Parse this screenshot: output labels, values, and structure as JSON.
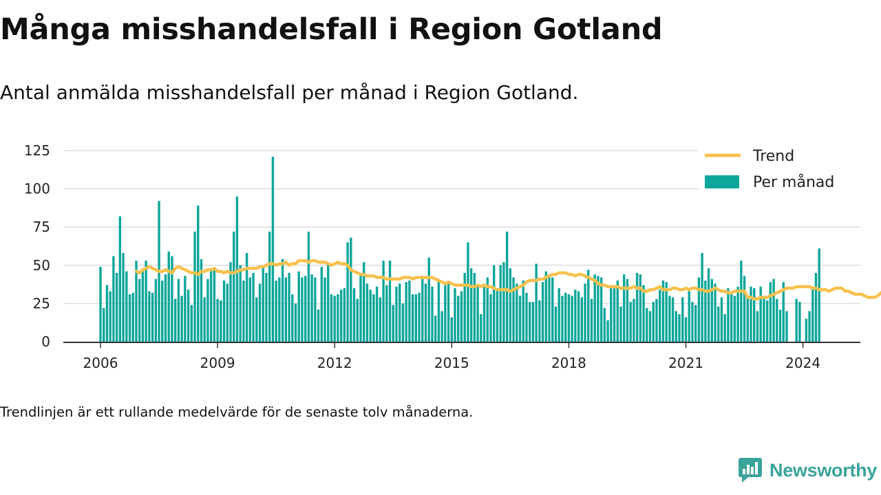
{
  "title": "Många misshandelsfall i Region Gotland",
  "subtitle": "Antal anmälda misshandelsfall per månad i Region Gotland.",
  "note": "Trendlinjen är ett rullande medelvärde för de senaste tolv månaderna.",
  "brand": {
    "name": "Newsworthy",
    "icon": "bar-chart-logo-icon"
  },
  "colors": {
    "bars": "#0ea69a",
    "trend": "#f8c14e",
    "brand": "#3aa39a",
    "grid": "#dcdcdc",
    "axis": "#333333"
  },
  "chart_data": {
    "type": "bar",
    "x_start": "2006-01",
    "x_end": "2024-07",
    "xticks": [
      "2006",
      "2009",
      "2012",
      "2015",
      "2018",
      "2021",
      "2024"
    ],
    "yticks": [
      "0",
      "25",
      "50",
      "75",
      "100",
      "125"
    ],
    "ylim": [
      0,
      130
    ],
    "grid": true,
    "legend_position": "top-right",
    "series": [
      {
        "name": "Per månad",
        "type": "bar",
        "values": [
          49,
          22,
          37,
          33,
          56,
          45,
          82,
          58,
          46,
          31,
          32,
          53,
          41,
          46,
          53,
          33,
          32,
          41,
          92,
          40,
          44,
          59,
          56,
          28,
          41,
          30,
          43,
          34,
          24,
          72,
          89,
          54,
          29,
          41,
          47,
          48,
          28,
          27,
          40,
          38,
          52,
          72,
          95,
          50,
          40,
          58,
          42,
          45,
          29,
          38,
          50,
          45,
          72,
          121,
          40,
          42,
          54,
          42,
          45,
          31,
          25,
          46,
          42,
          43,
          72,
          44,
          42,
          21,
          49,
          42,
          51,
          31,
          30,
          31,
          34,
          35,
          65,
          68,
          35,
          28,
          45,
          52,
          38,
          34,
          31,
          36,
          29,
          53,
          37,
          53,
          24,
          36,
          38,
          25,
          39,
          40,
          31,
          31,
          32,
          43,
          38,
          55,
          36,
          17,
          41,
          20,
          37,
          38,
          16,
          35,
          30,
          33,
          45,
          65,
          48,
          45,
          37,
          18,
          38,
          42,
          31,
          50,
          34,
          50,
          52,
          72,
          48,
          42,
          38,
          30,
          40,
          32,
          26,
          26,
          51,
          27,
          39,
          46,
          43,
          42,
          23,
          35,
          30,
          32,
          31,
          30,
          34,
          33,
          29,
          38,
          47,
          28,
          44,
          43,
          42,
          22,
          14,
          35,
          35,
          40,
          23,
          44,
          41,
          26,
          28,
          45,
          44,
          37,
          22,
          20,
          26,
          28,
          34,
          40,
          39,
          30,
          29,
          20,
          18,
          29,
          16,
          33,
          26,
          24,
          42,
          58,
          40,
          48,
          41,
          38,
          23,
          29,
          18,
          35,
          33,
          30,
          36,
          53,
          43,
          30,
          36,
          35,
          20,
          36,
          30,
          27,
          39,
          41,
          28,
          21,
          39,
          20,
          0,
          0,
          28,
          26,
          0,
          15,
          20,
          36,
          45,
          61
        ]
      },
      {
        "name": "Trend",
        "type": "line",
        "start": "2006-12",
        "values": [
          46,
          45,
          47,
          48,
          49,
          48,
          47,
          46,
          46,
          47,
          46,
          45,
          48,
          49,
          48,
          47,
          46,
          45,
          45,
          44,
          46,
          46,
          47,
          47,
          48,
          46,
          46,
          45,
          46,
          45,
          45,
          46,
          47,
          47,
          48,
          48,
          48,
          48,
          49,
          49,
          50,
          51,
          51,
          50,
          51,
          51,
          52,
          50,
          51,
          51,
          53,
          53,
          53,
          52,
          53,
          53,
          52,
          52,
          52,
          51,
          50,
          51,
          52,
          51,
          51,
          50,
          47,
          46,
          45,
          44,
          44,
          43,
          43,
          43,
          42,
          42,
          42,
          41,
          41,
          41,
          41,
          41,
          42,
          42,
          42,
          41,
          42,
          42,
          42,
          42,
          42,
          42,
          41,
          40,
          39,
          38,
          39,
          38,
          37,
          37,
          37,
          37,
          37,
          36,
          36,
          37,
          36,
          37,
          36,
          36,
          35,
          34,
          34,
          34,
          34,
          33,
          34,
          35,
          36,
          37,
          39,
          40,
          40,
          40,
          41,
          41,
          42,
          43,
          44,
          44,
          45,
          45,
          45,
          44,
          44,
          43,
          44,
          44,
          43,
          42,
          41,
          40,
          38,
          37,
          37,
          36,
          36,
          36,
          36,
          35,
          35,
          35,
          35,
          36,
          35,
          35,
          33,
          33,
          34,
          34,
          35,
          36,
          34,
          34,
          34,
          35,
          35,
          34,
          34,
          35,
          34,
          35,
          35,
          34,
          34,
          33,
          33,
          34,
          35,
          34,
          33,
          33,
          32,
          32,
          33,
          33,
          33,
          33,
          29,
          29,
          28,
          28,
          29,
          29,
          29,
          30,
          31,
          32,
          33,
          34,
          35,
          35,
          35,
          36,
          36,
          36,
          36,
          36,
          35,
          35,
          34,
          34,
          34,
          33,
          34,
          35,
          35,
          35,
          33,
          33,
          32,
          31,
          31,
          31,
          30,
          29,
          29,
          29,
          30,
          32,
          33
        ]
      }
    ]
  }
}
